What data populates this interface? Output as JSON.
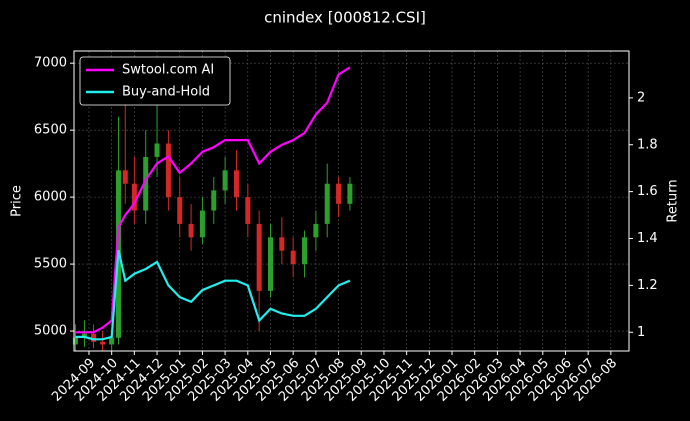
{
  "chart_data": {
    "type": "candlestick",
    "title": "cnindex [000812.CSI]",
    "ylabel": "Price",
    "y2label": "Return",
    "x": [
      -0.6,
      -0.2,
      0.2,
      0.6,
      1.0,
      1.3,
      1.6,
      2.0,
      2.5,
      3.0,
      3.5,
      4.0,
      4.5,
      5.0,
      5.5,
      6.0,
      6.5,
      7.0,
      7.5,
      8.0,
      8.5,
      9.0,
      9.5,
      10.0,
      10.5,
      11.0,
      11.5
    ],
    "candles": {
      "open": [
        4900,
        4950,
        4980,
        4920,
        4900,
        4950,
        6200,
        6100,
        5900,
        6300,
        6400,
        6000,
        5800,
        5700,
        5900,
        6050,
        6200,
        6000,
        5800,
        5300,
        5700,
        5600,
        5500,
        5700,
        5800,
        6100,
        5950
      ],
      "high": [
        5050,
        5080,
        5050,
        5000,
        5000,
        6600,
        6800,
        6300,
        6500,
        6700,
        6500,
        6150,
        5950,
        6000,
        6150,
        6300,
        6350,
        6100,
        5900,
        5800,
        5850,
        5700,
        5750,
        5900,
        6250,
        6150,
        6150
      ],
      "low": [
        4850,
        4880,
        4870,
        4850,
        4850,
        4900,
        5950,
        5800,
        5800,
        6150,
        5900,
        5700,
        5600,
        5650,
        5800,
        5950,
        5900,
        5700,
        5000,
        5250,
        5500,
        5400,
        5400,
        5600,
        5700,
        5850,
        5900
      ],
      "close": [
        4950,
        4980,
        4920,
        4900,
        4950,
        6200,
        6100,
        5900,
        6300,
        6400,
        6000,
        5800,
        5700,
        5900,
        6050,
        6200,
        6000,
        5800,
        5300,
        5700,
        5600,
        5500,
        5700,
        5800,
        6100,
        5950,
        6100
      ],
      "up_color": "#2ca02c",
      "down_color": "#d62728"
    },
    "series": [
      {
        "name": "Swtool.com AI",
        "color": "#ff00ff",
        "axis": "y2",
        "values": [
          1.0,
          1.0,
          1.0,
          1.02,
          1.05,
          1.45,
          1.5,
          1.55,
          1.65,
          1.72,
          1.75,
          1.68,
          1.72,
          1.77,
          1.79,
          1.82,
          1.82,
          1.82,
          1.72,
          1.77,
          1.8,
          1.82,
          1.85,
          1.93,
          1.98,
          2.1,
          2.13
        ]
      },
      {
        "name": "Buy-and-Hold",
        "color": "#22eeee",
        "axis": "y2",
        "values": [
          0.98,
          0.98,
          0.97,
          0.97,
          0.98,
          1.35,
          1.22,
          1.25,
          1.27,
          1.3,
          1.2,
          1.15,
          1.13,
          1.18,
          1.2,
          1.22,
          1.22,
          1.2,
          1.05,
          1.1,
          1.08,
          1.07,
          1.07,
          1.1,
          1.15,
          1.2,
          1.22
        ]
      }
    ],
    "xlim": [
      -0.66,
      23.8
    ],
    "xticks": [
      {
        "value": 0,
        "label": "2024-09"
      },
      {
        "value": 1,
        "label": "2024-10"
      },
      {
        "value": 2,
        "label": "2024-11"
      },
      {
        "value": 3,
        "label": "2024-12"
      },
      {
        "value": 4,
        "label": "2025-01"
      },
      {
        "value": 5,
        "label": "2025-02"
      },
      {
        "value": 6,
        "label": "2025-03"
      },
      {
        "value": 7,
        "label": "2025-04"
      },
      {
        "value": 8,
        "label": "2025-05"
      },
      {
        "value": 9,
        "label": "2025-06"
      },
      {
        "value": 10,
        "label": "2025-07"
      },
      {
        "value": 11,
        "label": "2025-08"
      },
      {
        "value": 12,
        "label": "2025-09"
      },
      {
        "value": 13,
        "label": "2025-10"
      },
      {
        "value": 14,
        "label": "2025-11"
      },
      {
        "value": 15,
        "label": "2025-12"
      },
      {
        "value": 16,
        "label": "2026-01"
      },
      {
        "value": 17,
        "label": "2026-02"
      },
      {
        "value": 18,
        "label": "2026-03"
      },
      {
        "value": 19,
        "label": "2026-04"
      },
      {
        "value": 20,
        "label": "2026-05"
      },
      {
        "value": 21,
        "label": "2026-06"
      },
      {
        "value": 22,
        "label": "2026-07"
      },
      {
        "value": 23,
        "label": "2026-08"
      }
    ],
    "ylim": [
      4851,
      7091
    ],
    "yticks": [
      5000,
      5500,
      6000,
      6500,
      7000
    ],
    "y2lim": [
      0.92,
      2.2
    ],
    "y2ticks": [
      1.0,
      1.2,
      1.4,
      1.6,
      1.8,
      2.0
    ],
    "grid": true,
    "legend": "upper left"
  }
}
